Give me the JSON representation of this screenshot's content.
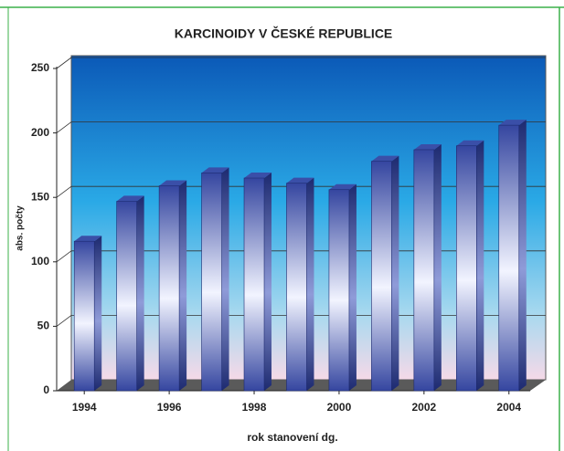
{
  "chart_data": {
    "type": "bar3d",
    "title": "KARCINOIDY V ČESKÉ REPUBLICE",
    "x_label": "rok stanovení dg.",
    "y_label": "abs. počty",
    "x": [
      1994,
      1995,
      1996,
      1997,
      1998,
      1999,
      2000,
      2001,
      2002,
      2003,
      2004
    ],
    "values": [
      116,
      147,
      159,
      169,
      165,
      161,
      156,
      178,
      187,
      190,
      206
    ],
    "color": "#3a4fa8",
    "xlim": [
      1993.35,
      2004.5
    ],
    "xticks": [
      1994,
      1996,
      1998,
      2000,
      2002,
      2004
    ],
    "ylim": [
      0,
      250
    ],
    "yticks": [
      0,
      50,
      100,
      150,
      200,
      250
    ],
    "grid": true
  }
}
